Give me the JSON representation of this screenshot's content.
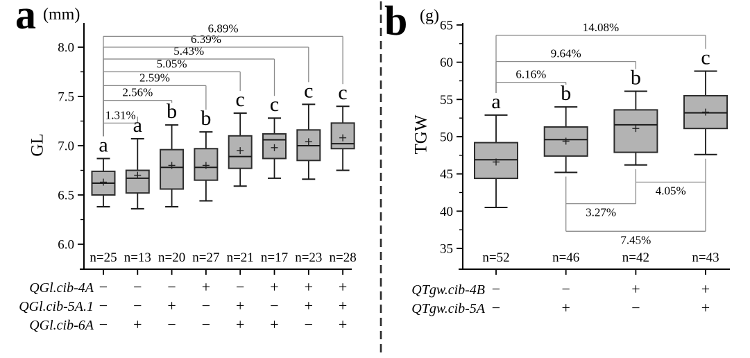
{
  "figure": {
    "background": "#ffffff",
    "box_fill": "#b3b3b3",
    "box_border": "#2d2d2d",
    "whisker_color": "#1a1a1a",
    "bracket_color": "#8a8a8a",
    "axis_color": "#000000",
    "divider_color": "#2b2b2b"
  },
  "chart_data": [
    {
      "type": "box",
      "panel_letter": "a",
      "unit": "(mm)",
      "ylabel": "GL",
      "axis": {
        "ymin": 6.0,
        "ymax": 8.0,
        "major_ticks": [
          6.0,
          6.5,
          7.0,
          7.5,
          8.0
        ],
        "major_tick_labels": [
          "6.0",
          "6.5",
          "7.0",
          "7.5",
          "8.0"
        ],
        "minor_ticks": [
          6.25,
          6.75,
          7.25,
          7.75
        ]
      },
      "boxes": [
        {
          "n_label": "n=25",
          "sig": "a",
          "whisker_low": 6.38,
          "q1": 6.5,
          "median": 6.62,
          "mean": 6.63,
          "q3": 6.74,
          "whisker_high": 6.87
        },
        {
          "n_label": "n=13",
          "sig": "a",
          "whisker_low": 6.36,
          "q1": 6.52,
          "median": 6.67,
          "mean": 6.7,
          "q3": 6.75,
          "whisker_high": 7.07
        },
        {
          "n_label": "n=20",
          "sig": "b",
          "whisker_low": 6.38,
          "q1": 6.56,
          "median": 6.78,
          "mean": 6.8,
          "q3": 6.96,
          "whisker_high": 7.21
        },
        {
          "n_label": "n=27",
          "sig": "b",
          "whisker_low": 6.44,
          "q1": 6.65,
          "median": 6.78,
          "mean": 6.8,
          "q3": 6.97,
          "whisker_high": 7.14
        },
        {
          "n_label": "n=21",
          "sig": "c",
          "whisker_low": 6.59,
          "q1": 6.77,
          "median": 6.89,
          "mean": 6.95,
          "q3": 7.1,
          "whisker_high": 7.33
        },
        {
          "n_label": "n=17",
          "sig": "c",
          "whisker_low": 6.67,
          "q1": 6.87,
          "median": 7.06,
          "mean": 6.98,
          "q3": 7.12,
          "whisker_high": 7.28
        },
        {
          "n_label": "n=23",
          "sig": "c",
          "whisker_low": 6.66,
          "q1": 6.85,
          "median": 7.0,
          "mean": 7.04,
          "q3": 7.16,
          "whisker_high": 7.42
        },
        {
          "n_label": "n=28",
          "sig": "c",
          "whisker_low": 6.75,
          "q1": 6.97,
          "median": 7.02,
          "mean": 7.08,
          "q3": 7.23,
          "whisker_high": 7.4
        }
      ],
      "comparisons": [
        {
          "label": "1.31%",
          "from": 0,
          "to": 1,
          "level": 7.23,
          "position": "top"
        },
        {
          "label": "2.56%",
          "from": 0,
          "to": 2,
          "level": 7.46,
          "position": "top"
        },
        {
          "label": "2.59%",
          "from": 0,
          "to": 3,
          "level": 7.61,
          "position": "top"
        },
        {
          "label": "5.05%",
          "from": 0,
          "to": 4,
          "level": 7.75,
          "position": "top"
        },
        {
          "label": "5.43%",
          "from": 0,
          "to": 5,
          "level": 7.88,
          "position": "top"
        },
        {
          "label": "6.39%",
          "from": 0,
          "to": 6,
          "level": 8.0,
          "position": "top"
        },
        {
          "label": "6.89%",
          "from": 0,
          "to": 7,
          "level": 8.11,
          "position": "top"
        }
      ],
      "genotype_rows": [
        {
          "name": "QGl.cib-4A",
          "marks": [
            "−",
            "−",
            "−",
            "+",
            "−",
            "+",
            "+",
            "+"
          ]
        },
        {
          "name": "QGl.cib-5A.1",
          "marks": [
            "−",
            "−",
            "+",
            "−",
            "+",
            "−",
            "+",
            "+"
          ]
        },
        {
          "name": "QGl.cib-6A",
          "marks": [
            "−",
            "+",
            "−",
            "−",
            "+",
            "+",
            "−",
            "+"
          ]
        }
      ]
    },
    {
      "type": "box",
      "panel_letter": "b",
      "unit": "(g)",
      "ylabel": "TGW",
      "axis": {
        "ymin": 35,
        "ymax": 65,
        "major_ticks": [
          35,
          40,
          45,
          50,
          55,
          60,
          65
        ],
        "major_tick_labels": [
          "35",
          "40",
          "45",
          "50",
          "55",
          "60",
          "65"
        ],
        "minor_ticks": [
          37.5,
          42.5,
          47.5,
          52.5,
          57.5,
          62.5
        ]
      },
      "boxes": [
        {
          "n_label": "n=52",
          "sig": "a",
          "whisker_low": 40.5,
          "q1": 44.4,
          "median": 46.9,
          "mean": 46.6,
          "q3": 49.2,
          "whisker_high": 52.9
        },
        {
          "n_label": "n=46",
          "sig": "b",
          "whisker_low": 45.2,
          "q1": 47.4,
          "median": 49.6,
          "mean": 49.4,
          "q3": 51.3,
          "whisker_high": 54.0
        },
        {
          "n_label": "n=42",
          "sig": "b",
          "whisker_low": 46.2,
          "q1": 47.9,
          "median": 51.6,
          "mean": 51.1,
          "q3": 53.6,
          "whisker_high": 56.1
        },
        {
          "n_label": "n=43",
          "sig": "c",
          "whisker_low": 47.6,
          "q1": 51.1,
          "median": 53.2,
          "mean": 53.3,
          "q3": 55.5,
          "whisker_high": 58.8
        }
      ],
      "comparisons": [
        {
          "label": "6.16%",
          "from": 0,
          "to": 1,
          "level": 57.3,
          "position": "top"
        },
        {
          "label": "9.64%",
          "from": 0,
          "to": 2,
          "level": 60.1,
          "position": "top"
        },
        {
          "label": "14.08%",
          "from": 0,
          "to": 3,
          "level": 63.6,
          "position": "top"
        },
        {
          "label": "3.27%",
          "from": 1,
          "to": 2,
          "level": 41.0,
          "position": "bottom"
        },
        {
          "label": "4.05%",
          "from": 2,
          "to": 3,
          "level": 43.9,
          "position": "bottom"
        },
        {
          "label": "7.45%",
          "from": 1,
          "to": 3,
          "level": 37.3,
          "position": "bottom"
        }
      ],
      "genotype_rows": [
        {
          "name": "QTgw.cib-4B",
          "marks": [
            "−",
            "−",
            "+",
            "+"
          ]
        },
        {
          "name": "QTgw.cib-5A",
          "marks": [
            "−",
            "+",
            "−",
            "+"
          ]
        }
      ]
    }
  ]
}
